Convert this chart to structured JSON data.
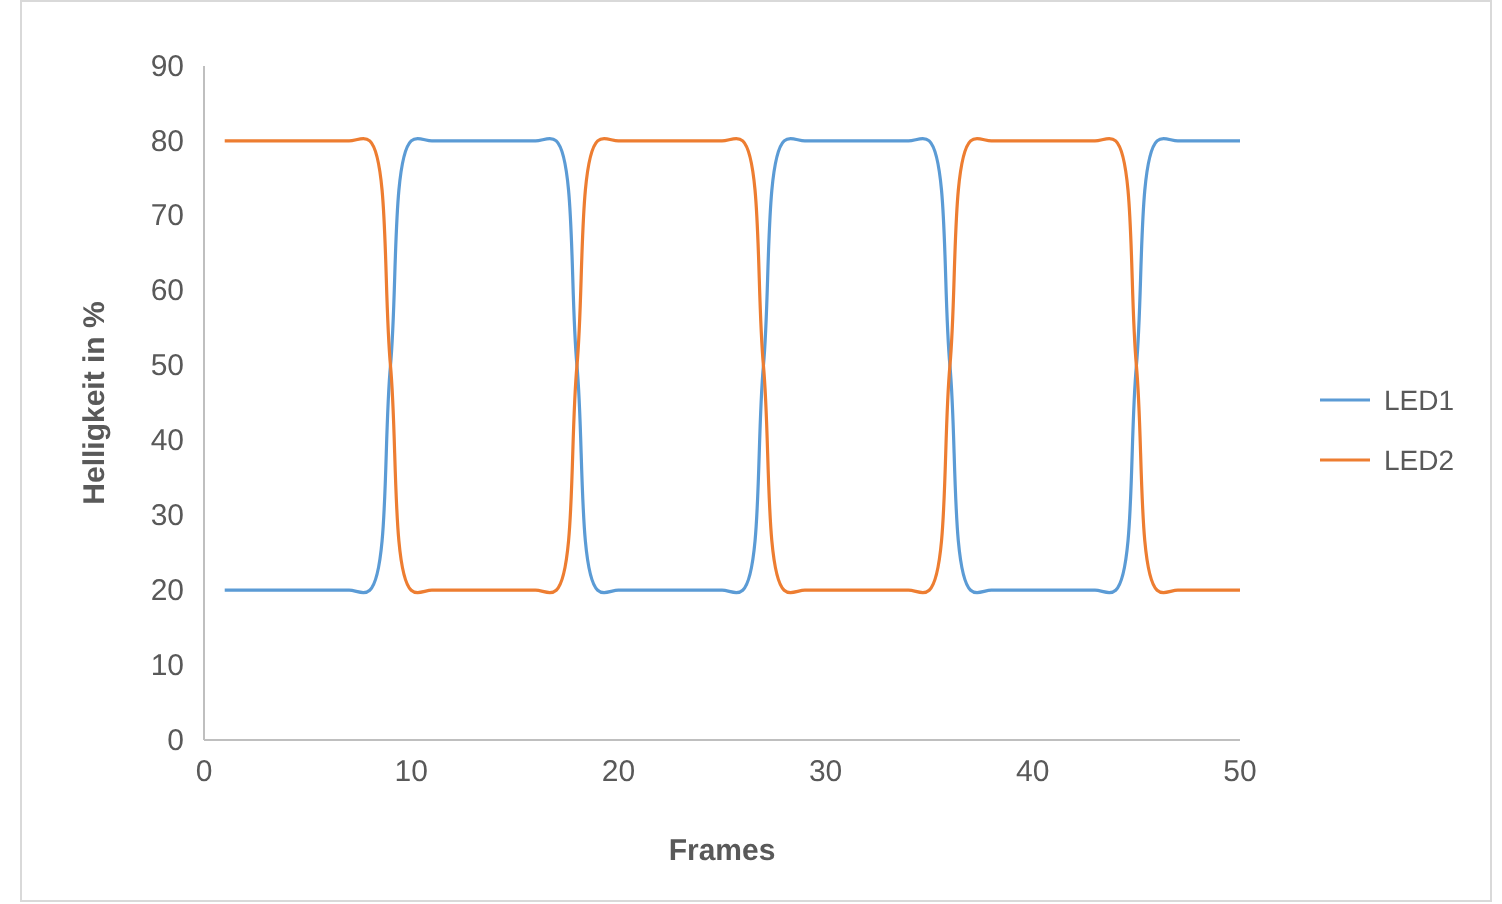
{
  "chart_data": {
    "type": "line",
    "xlabel": "Frames",
    "ylabel": "Helligkeit in %",
    "x": [
      1,
      2,
      3,
      4,
      5,
      6,
      7,
      8,
      9,
      10,
      11,
      12,
      13,
      14,
      15,
      16,
      17,
      18,
      19,
      20,
      21,
      22,
      23,
      24,
      25,
      26,
      27,
      28,
      29,
      30,
      31,
      32,
      33,
      34,
      35,
      36,
      37,
      38,
      39,
      40,
      41,
      42,
      43,
      44,
      45,
      46,
      47,
      48,
      49,
      50
    ],
    "series": [
      {
        "name": "LED1",
        "color": "#5b9bd5",
        "values": [
          20,
          20,
          20,
          20,
          20,
          20,
          20,
          20,
          50,
          80,
          80,
          80,
          80,
          80,
          80,
          80,
          80,
          50,
          20,
          20,
          20,
          20,
          20,
          20,
          20,
          20,
          50,
          80,
          80,
          80,
          80,
          80,
          80,
          80,
          80,
          50,
          20,
          20,
          20,
          20,
          20,
          20,
          20,
          20,
          50,
          80,
          80,
          80,
          80,
          80
        ]
      },
      {
        "name": "LED2",
        "color": "#ed7d31",
        "values": [
          80,
          80,
          80,
          80,
          80,
          80,
          80,
          80,
          50,
          20,
          20,
          20,
          20,
          20,
          20,
          20,
          20,
          50,
          80,
          80,
          80,
          80,
          80,
          80,
          80,
          80,
          50,
          20,
          20,
          20,
          20,
          20,
          20,
          20,
          20,
          50,
          80,
          80,
          80,
          80,
          80,
          80,
          80,
          80,
          50,
          20,
          20,
          20,
          20,
          20
        ]
      }
    ],
    "xlim": [
      0,
      50
    ],
    "xticks": [
      0,
      10,
      20,
      30,
      40,
      50
    ],
    "ylim": [
      0,
      90
    ],
    "yticks": [
      0,
      10,
      20,
      30,
      40,
      50,
      60,
      70,
      80,
      90
    ],
    "grid": false,
    "legend": "right",
    "marker": "none",
    "line_style": "solid"
  }
}
